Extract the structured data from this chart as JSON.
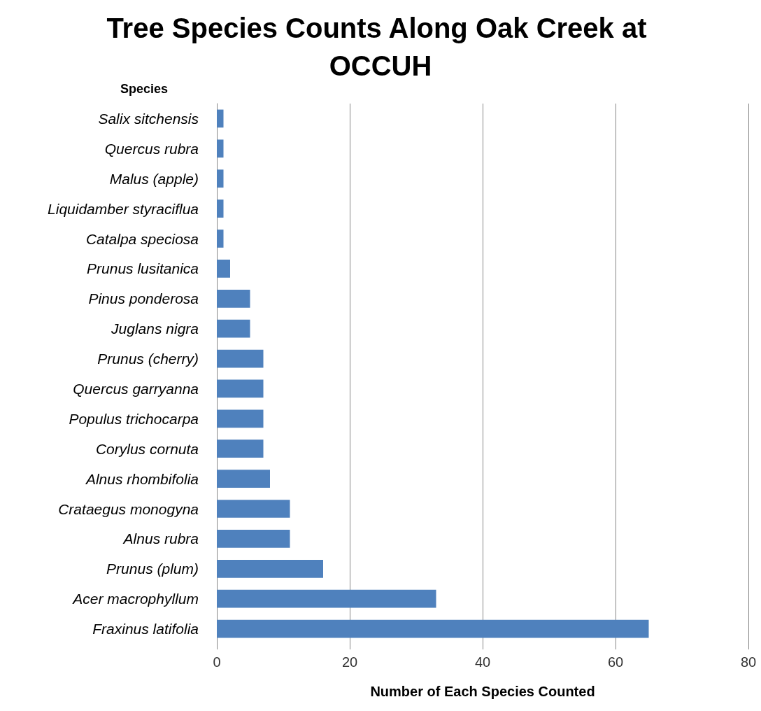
{
  "chart_data": {
    "type": "bar",
    "orientation": "horizontal",
    "title": "Tree Species Counts Along Oak Creek at OCCUH",
    "ylabel": "Species",
    "xlabel": "Number of Each Species Counted",
    "categories": [
      "Salix sitchensis",
      "Quercus rubra",
      "Malus (apple)",
      "Liquidamber styraciflua",
      "Catalpa speciosa",
      "Prunus lusitanica",
      "Pinus ponderosa",
      "Juglans nigra",
      "Prunus (cherry)",
      "Quercus garryanna",
      "Populus trichocarpa",
      "Corylus cornuta",
      "Alnus rhombifolia",
      "Crataegus monogyna",
      "Alnus rubra",
      "Prunus (plum)",
      "Acer macrophyllum",
      "Fraxinus latifolia"
    ],
    "values": [
      1,
      1,
      1,
      1,
      1,
      2,
      5,
      5,
      7,
      7,
      7,
      7,
      8,
      11,
      11,
      16,
      33,
      65
    ],
    "color": "#4f81bd",
    "xlim": [
      0,
      80
    ],
    "xticks": [
      0,
      20,
      40,
      60,
      80
    ],
    "grid": "x"
  }
}
